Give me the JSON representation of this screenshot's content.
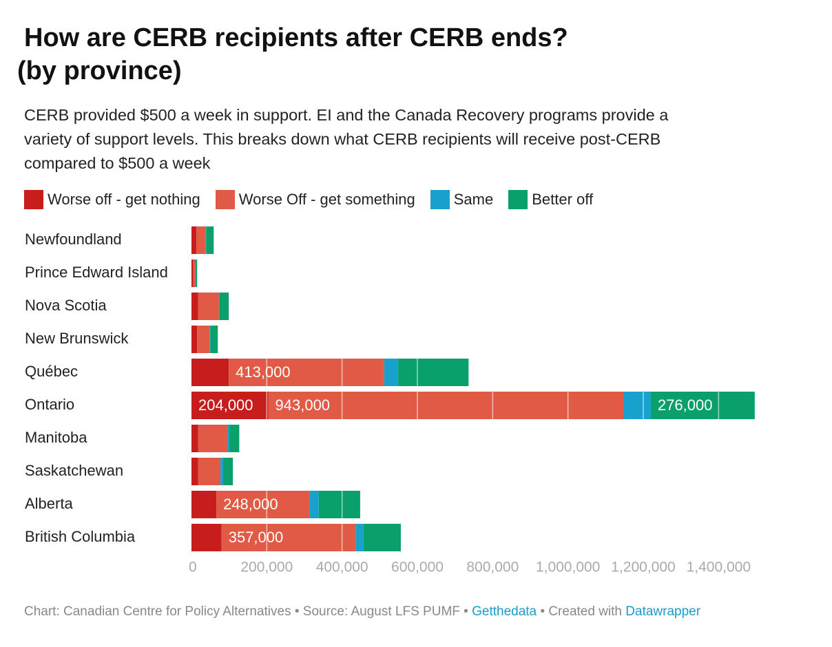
{
  "chart_data": {
    "type": "stacked-bar-horizontal",
    "title": [
      "How are CERB recipients after CERB ends?",
      "(by province)"
    ],
    "subtitle": "CERB provided $500 a week in support. EI and the Canada Recovery programs provide a variety of support levels. This breaks down what CERB recipients will receive post-CERB compared to $500 a week",
    "categories": [
      "Newfoundland",
      "Prince Edward Island",
      "Nova Scotia",
      "New Brunswick",
      "Québec",
      "Ontario",
      "Manitoba",
      "Saskatchewan",
      "Alberta",
      "British Columbia"
    ],
    "series": [
      {
        "name": "Worse off - get nothing",
        "color": "#c71e1d",
        "values": [
          13000,
          5000,
          18000,
          15000,
          99000,
          204000,
          18000,
          18000,
          66000,
          80000
        ],
        "value_labels": [
          null,
          null,
          null,
          null,
          null,
          "204,000",
          null,
          null,
          null,
          null
        ]
      },
      {
        "name": "Worse Off - get something",
        "color": "#e15a45",
        "values": [
          24000,
          5000,
          55000,
          33000,
          413000,
          943000,
          77000,
          59000,
          248000,
          357000
        ],
        "value_labels": [
          null,
          null,
          null,
          null,
          "413,000",
          "943,000",
          null,
          null,
          "248,000",
          "357,000"
        ]
      },
      {
        "name": "Same",
        "color": "#18a1cd",
        "values": [
          2000,
          1000,
          2000,
          2000,
          37000,
          73000,
          5000,
          7000,
          24000,
          20000
        ]
      },
      {
        "name": "Better off",
        "color": "#09a06c",
        "values": [
          20000,
          4000,
          24000,
          20000,
          187000,
          276000,
          27000,
          26000,
          110000,
          99000
        ],
        "value_labels": [
          null,
          null,
          null,
          null,
          null,
          "276,000",
          null,
          null,
          null,
          null
        ]
      }
    ],
    "xlim": [
      0,
      1500000
    ],
    "xticks": [
      0,
      {
        "value": 200000,
        "label": "200,000"
      },
      {
        "value": 400000,
        "label": "400,000"
      },
      {
        "value": 600000,
        "label": "600,000"
      },
      {
        "value": 800000,
        "label": "800,000"
      },
      {
        "value": 1000000,
        "label": "1,000,000"
      },
      {
        "value": 1200000,
        "label": "1,200,000"
      },
      {
        "value": 1400000,
        "label": "1,400,000"
      }
    ],
    "grid": true,
    "footer": {
      "credit": "Chart: Canadian Centre for Policy Alternatives • Source: August LFS PUMF •",
      "link": "Getthedata",
      "created": "• Created with",
      "tool": "Datawrapper"
    }
  }
}
